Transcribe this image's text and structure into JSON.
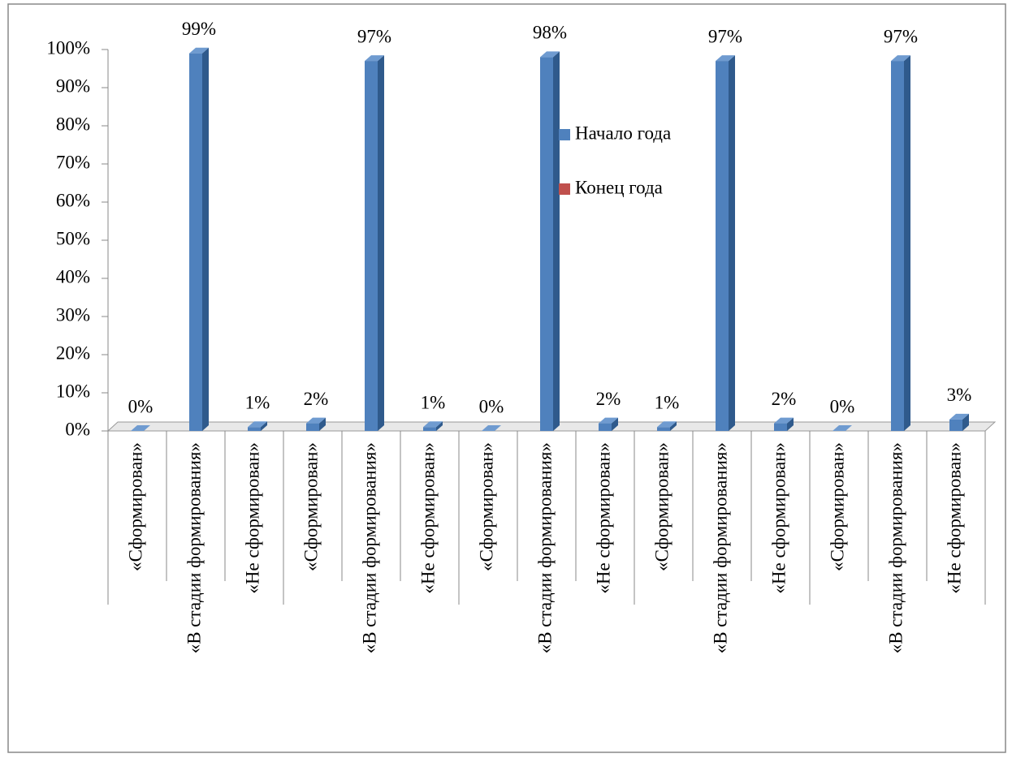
{
  "chart_data": {
    "type": "bar",
    "categories": [
      "«Сформирован»",
      "«В стадии формирования»",
      "«Не сформирован»",
      "«Сформирован»",
      "«В стадии формирования»",
      "«Не сформирован»",
      "«Сформирован»",
      "«В стадии формирования»",
      "«Не сформирован»",
      "«Сформирован»",
      "«В стадии формирования»",
      "«Не сформирован»",
      "«Сформирован»",
      "«В стадии формирования»",
      "«Не сформирован»"
    ],
    "series": [
      {
        "name": "Начало года",
        "color": "#4f81bd",
        "values": [
          0,
          99,
          1,
          2,
          97,
          1,
          0,
          98,
          2,
          1,
          97,
          2,
          0,
          97,
          3
        ],
        "value_labels": [
          "0%",
          "99%",
          "1%",
          "2%",
          "97%",
          "1%",
          "0%",
          "98%",
          "2%",
          "1%",
          "97%",
          "2%",
          "0%",
          "97%",
          "3%"
        ]
      },
      {
        "name": "Конец года",
        "color": "#c0504d",
        "values": [
          null,
          null,
          null,
          null,
          null,
          null,
          null,
          null,
          null,
          null,
          null,
          null,
          null,
          null,
          null
        ]
      }
    ],
    "ylim": [
      0,
      100
    ],
    "yticks": [
      {
        "value": 0,
        "label": "0%"
      },
      {
        "value": 10,
        "label": "10%"
      },
      {
        "value": 20,
        "label": "20%"
      },
      {
        "value": 30,
        "label": "30%"
      },
      {
        "value": 40,
        "label": "40%"
      },
      {
        "value": 50,
        "label": "50%"
      },
      {
        "value": 60,
        "label": "60%"
      },
      {
        "value": 70,
        "label": "70%"
      },
      {
        "value": 80,
        "label": "80%"
      },
      {
        "value": 90,
        "label": "90%"
      },
      {
        "value": 100,
        "label": "100%"
      }
    ]
  }
}
